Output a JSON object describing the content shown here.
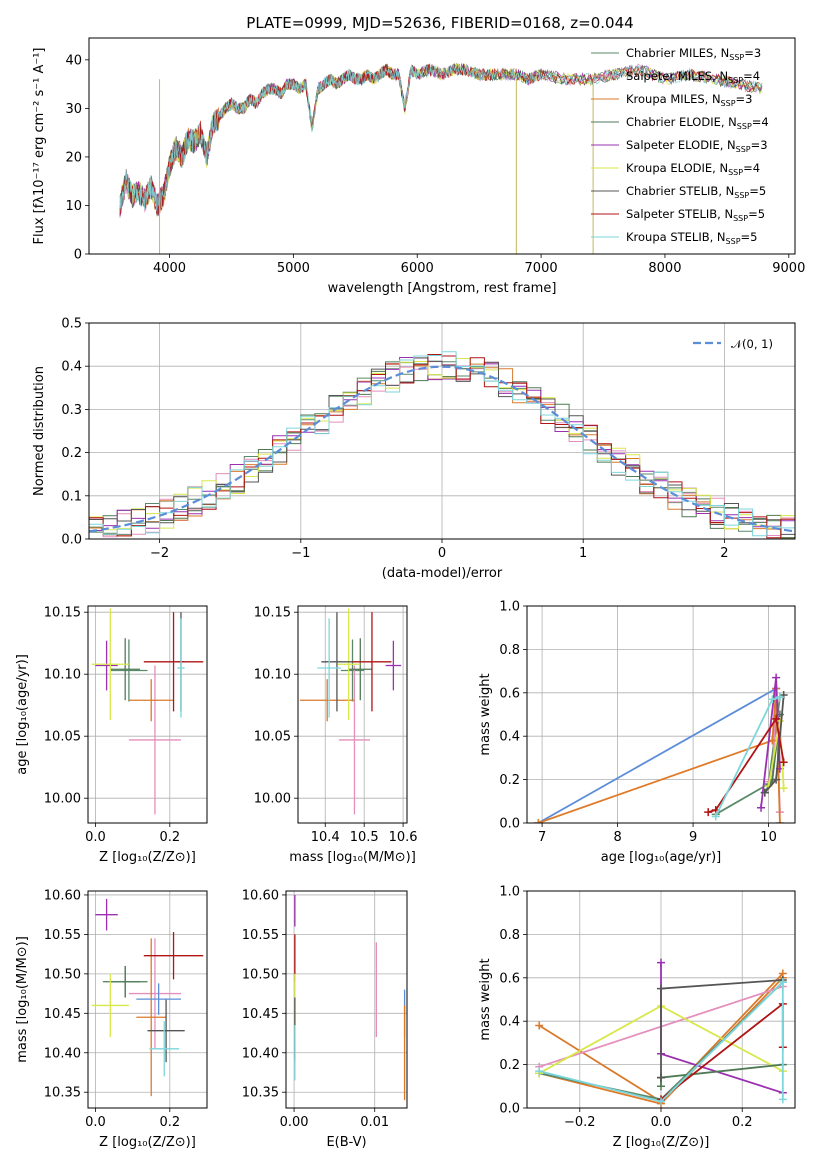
{
  "title": "PLATE=0999, MJD=52636, FIBERID=0168, z=0.044",
  "colors": {
    "Chabrier MILES": "#5a8a6a",
    "Salpeter MILES": "#e48fbc",
    "Kroupa MILES": "#d97a2b",
    "Chabrier ELODIE": "#4f7a54",
    "Salpeter ELODIE": "#9b30b0",
    "Kroupa ELODIE": "#d8e84a",
    "Chabrier STELIB": "#555555",
    "Salpeter STELIB": "#b01515",
    "Kroupa STELIB": "#7dd6dc",
    "gauss": "#5b8dd9",
    "extra_blue": "#5b8dd9",
    "extra_orange": "#e07b2a"
  },
  "legend": [
    {
      "key": "Chabrier MILES",
      "label": "Chabrier MILES, N",
      "sub": "SSP",
      "val": "=3"
    },
    {
      "key": "Salpeter MILES",
      "label": "Salpeter MILES, N",
      "sub": "SSP",
      "val": "=4"
    },
    {
      "key": "Kroupa MILES",
      "label": "Kroupa MILES, N",
      "sub": "SSP",
      "val": "=3"
    },
    {
      "key": "Chabrier ELODIE",
      "label": "Chabrier ELODIE, N",
      "sub": "SSP",
      "val": "=4"
    },
    {
      "key": "Salpeter ELODIE",
      "label": "Salpeter ELODIE, N",
      "sub": "SSP",
      "val": "=3"
    },
    {
      "key": "Kroupa ELODIE",
      "label": "Kroupa ELODIE, N",
      "sub": "SSP",
      "val": "=4"
    },
    {
      "key": "Chabrier STELIB",
      "label": "Chabrier STELIB, N",
      "sub": "SSP",
      "val": "=5"
    },
    {
      "key": "Salpeter STELIB",
      "label": "Salpeter STELIB, N",
      "sub": "SSP",
      "val": "=5"
    },
    {
      "key": "Kroupa STELIB",
      "label": "Kroupa STELIB, N",
      "sub": "SSP",
      "val": "=5"
    }
  ],
  "chart_data": [
    {
      "id": "spectrum",
      "type": "line",
      "xlabel": "wavelength [Angstrom, rest frame]",
      "ylabel": "Flux [fλ10⁻¹⁷ erg cm⁻² s⁻¹ A⁻¹]",
      "xlim": [
        3350,
        9050
      ],
      "ylim": [
        0,
        44.5
      ],
      "xticks": [
        4000,
        5000,
        6000,
        7000,
        8000,
        9000
      ],
      "yticks": [
        0,
        10,
        20,
        30,
        40
      ],
      "x": [
        3600,
        3650,
        3700,
        3750,
        3800,
        3850,
        3900,
        3950,
        4000,
        4050,
        4100,
        4150,
        4200,
        4250,
        4300,
        4350,
        4400,
        4450,
        4500,
        4550,
        4600,
        4650,
        4700,
        4750,
        4800,
        4850,
        4900,
        4950,
        5000,
        5050,
        5100,
        5150,
        5200,
        5250,
        5300,
        5350,
        5400,
        5450,
        5500,
        5550,
        5600,
        5650,
        5700,
        5750,
        5800,
        5850,
        5900,
        5950,
        6000,
        6100,
        6200,
        6300,
        6400,
        6500,
        6600,
        6700,
        6800,
        6900,
        7000,
        7200,
        7400,
        7600,
        7800,
        8000,
        8200,
        8400,
        8600,
        8800
      ],
      "y": [
        10,
        15,
        12,
        13,
        11,
        14,
        10,
        12,
        18,
        22,
        20,
        24,
        23,
        25,
        20,
        27,
        28,
        30,
        31,
        30,
        30,
        32,
        31,
        33,
        34,
        34,
        33,
        35,
        35,
        34,
        35,
        26,
        34,
        35,
        36,
        35,
        36,
        37,
        36,
        36,
        37,
        36,
        37,
        38,
        37,
        37,
        30,
        38,
        37,
        38,
        37,
        38,
        38,
        37,
        37,
        37,
        37,
        36,
        37,
        36,
        36,
        37,
        38,
        36,
        37,
        36,
        35,
        34
      ],
      "dips": [
        {
          "x": 3920,
          "y": 0
        },
        {
          "x": 6800,
          "y": 0
        },
        {
          "x": 7420,
          "y": 0
        }
      ]
    },
    {
      "id": "residual_hist",
      "type": "histogram",
      "xlabel": "(data-model)/error",
      "ylabel": "Normed distribution",
      "xlim": [
        -2.5,
        2.5
      ],
      "ylim": [
        0,
        0.5
      ],
      "xticks": [
        -2,
        -1,
        0,
        1,
        2
      ],
      "yticks": [
        0.0,
        0.1,
        0.2,
        0.3,
        0.4,
        0.5
      ],
      "legend_label": "𝒩(0, 1)",
      "legend_loc": "upper right",
      "bin_width": 0.1
    },
    {
      "id": "age_vs_Z",
      "type": "scatter",
      "xlabel": "Z [log₁₀(Z/Z⊙)]",
      "ylabel": "age  [log₁₀(age/yr)]",
      "xlim": [
        -0.02,
        0.3
      ],
      "ylim": [
        9.98,
        10.155
      ],
      "xticks": [
        0.0,
        0.2
      ],
      "yticks": [
        10.0,
        10.05,
        10.1,
        10.15
      ],
      "points": [
        {
          "s": "Chabrier MILES",
          "x": 0.09,
          "y": 10.103,
          "ex": 0.05,
          "ey": 0.025
        },
        {
          "s": "Salpeter MILES",
          "x": 0.16,
          "y": 10.047,
          "ex": 0.07,
          "ey": 0.06
        },
        {
          "s": "Kroupa MILES",
          "x": 0.15,
          "y": 10.079,
          "ex": 0.06,
          "ey": 0.017
        },
        {
          "s": "Chabrier ELODIE",
          "x": 0.08,
          "y": 10.104,
          "ex": 0.04,
          "ey": 0.025
        },
        {
          "s": "Salpeter ELODIE",
          "x": 0.03,
          "y": 10.107,
          "ex": 0.03,
          "ey": 0.02
        },
        {
          "s": "Kroupa ELODIE",
          "x": 0.04,
          "y": 10.108,
          "ex": 0.05,
          "ey": 0.045
        },
        {
          "s": "Chabrier STELIB",
          "x": 0.23,
          "y": 10.11,
          "ex": 0.01,
          "ey": 0.04
        },
        {
          "s": "Salpeter STELIB",
          "x": 0.21,
          "y": 10.11,
          "ex": 0.08,
          "ey": 0.04
        },
        {
          "s": "Kroupa STELIB",
          "x": 0.23,
          "y": 10.105,
          "ex": 0.01,
          "ey": 0.04
        }
      ]
    },
    {
      "id": "age_vs_mass",
      "type": "scatter",
      "xlabel": "mass [log₁₀(M/M⊙)]",
      "ylabel": "",
      "xlim": [
        10.33,
        10.61
      ],
      "ylim": [
        9.98,
        10.155
      ],
      "xticks": [
        10.4,
        10.5,
        10.6
      ],
      "yticks": [
        10.0,
        10.05,
        10.1,
        10.15
      ],
      "points": [
        {
          "s": "Chabrier MILES",
          "x": 10.47,
          "y": 10.103,
          "ex": 0.03,
          "ey": 0.025
        },
        {
          "s": "Salpeter MILES",
          "x": 10.475,
          "y": 10.047,
          "ex": 0.04,
          "ey": 0.06
        },
        {
          "s": "Kroupa MILES",
          "x": 10.405,
          "y": 10.079,
          "ex": 0.07,
          "ey": 0.017
        },
        {
          "s": "Chabrier ELODIE",
          "x": 10.49,
          "y": 10.104,
          "ex": 0.03,
          "ey": 0.025
        },
        {
          "s": "Salpeter ELODIE",
          "x": 10.575,
          "y": 10.107,
          "ex": 0.02,
          "ey": 0.02
        },
        {
          "s": "Kroupa ELODIE",
          "x": 10.46,
          "y": 10.108,
          "ex": 0.03,
          "ey": 0.045
        },
        {
          "s": "Chabrier STELIB",
          "x": 10.43,
          "y": 10.11,
          "ex": 0.04,
          "ey": 0.04
        },
        {
          "s": "Salpeter STELIB",
          "x": 10.52,
          "y": 10.11,
          "ex": 0.05,
          "ey": 0.04
        },
        {
          "s": "Kroupa STELIB",
          "x": 10.41,
          "y": 10.105,
          "ex": 0.03,
          "ey": 0.04
        }
      ]
    },
    {
      "id": "weight_vs_age",
      "type": "line",
      "xlabel": "age  [log₁₀(age/yr)]",
      "ylabel": "mass weight",
      "xlim": [
        6.8,
        10.35
      ],
      "ylim": [
        0,
        1.0
      ],
      "xticks": [
        7,
        8,
        9,
        10
      ],
      "yticks": [
        0.0,
        0.2,
        0.4,
        0.6,
        0.8,
        1.0
      ],
      "series": [
        {
          "s": "extra_blue",
          "x": [
            6.95,
            10.1
          ],
          "y": [
            0.0,
            0.62
          ]
        },
        {
          "s": "extra_orange",
          "x": [
            6.95,
            10.05
          ],
          "y": [
            0.0,
            0.38
          ]
        },
        {
          "s": "Chabrier MILES",
          "x": [
            9.3,
            10.0,
            10.15
          ],
          "y": [
            0.04,
            0.18,
            0.58
          ]
        },
        {
          "s": "Salpeter MILES",
          "x": [
            10.0,
            10.05,
            10.1,
            10.15
          ],
          "y": [
            0.19,
            0.2,
            0.56,
            0.05
          ]
        },
        {
          "s": "Kroupa MILES",
          "x": [
            10.05,
            10.1,
            10.15
          ],
          "y": [
            0.38,
            0.62,
            0.0
          ]
        },
        {
          "s": "Chabrier ELODIE",
          "x": [
            9.95,
            10.05,
            10.15
          ],
          "y": [
            0.14,
            0.2,
            0.5
          ]
        },
        {
          "s": "Salpeter ELODIE",
          "x": [
            9.9,
            10.1,
            10.15
          ],
          "y": [
            0.07,
            0.67,
            0.25
          ]
        },
        {
          "s": "Kroupa ELODIE",
          "x": [
            10.0,
            10.15,
            10.2
          ],
          "y": [
            0.17,
            0.47,
            0.16
          ]
        },
        {
          "s": "Chabrier STELIB",
          "x": [
            9.95,
            10.1,
            10.2
          ],
          "y": [
            0.14,
            0.2,
            0.59
          ]
        },
        {
          "s": "Salpeter STELIB",
          "x": [
            9.2,
            9.3,
            10.1,
            10.2
          ],
          "y": [
            0.05,
            0.06,
            0.48,
            0.28
          ]
        },
        {
          "s": "Kroupa STELIB",
          "x": [
            9.3,
            10.05,
            10.15
          ],
          "y": [
            0.03,
            0.57,
            0.58
          ]
        }
      ]
    },
    {
      "id": "mass_vs_Z",
      "type": "scatter",
      "xlabel": "Z [log₁₀(Z/Z⊙)]",
      "ylabel": "mass [log₁₀(M/M⊙)]",
      "xlim": [
        -0.02,
        0.3
      ],
      "ylim": [
        10.33,
        10.605
      ],
      "xticks": [
        0.0,
        0.2
      ],
      "yticks": [
        10.35,
        10.4,
        10.45,
        10.5,
        10.55,
        10.6
      ],
      "points": [
        {
          "s": "Chabrier MILES",
          "x": 0.08,
          "y": 10.49,
          "ex": 0.04,
          "ey": 0.02
        },
        {
          "s": "Salpeter MILES",
          "x": 0.16,
          "y": 10.475,
          "ex": 0.07,
          "ey": 0.07
        },
        {
          "s": "Kroupa MILES",
          "x": 0.15,
          "y": 10.445,
          "ex": 0.04,
          "ey": 0.1
        },
        {
          "s": "Chabrier ELODIE",
          "x": 0.08,
          "y": 10.49,
          "ex": 0.06,
          "ey": 0.02
        },
        {
          "s": "Salpeter ELODIE",
          "x": 0.03,
          "y": 10.575,
          "ex": 0.03,
          "ey": 0.02
        },
        {
          "s": "Kroupa ELODIE",
          "x": 0.04,
          "y": 10.46,
          "ex": 0.05,
          "ey": 0.04
        },
        {
          "s": "Chabrier STELIB",
          "x": 0.19,
          "y": 10.428,
          "ex": 0.05,
          "ey": 0.04
        },
        {
          "s": "Salpeter STELIB",
          "x": 0.21,
          "y": 10.523,
          "ex": 0.08,
          "ey": 0.03
        },
        {
          "s": "Kroupa STELIB",
          "x": 0.185,
          "y": 10.405,
          "ex": 0.04,
          "ey": 0.035
        },
        {
          "s": "gauss",
          "x": 0.17,
          "y": 10.468,
          "ex": 0.06,
          "ey": 0.02
        }
      ]
    },
    {
      "id": "mass_vs_EBV",
      "type": "scatter",
      "xlabel": "E(B-V)",
      "ylabel": "",
      "xlim": [
        -0.001,
        0.014
      ],
      "ylim": [
        10.33,
        10.605
      ],
      "xticks": [
        0.0,
        0.01
      ],
      "yticks": [
        10.35,
        10.4,
        10.45,
        10.5,
        10.55,
        10.6
      ],
      "points": [
        {
          "s": "Salpeter ELODIE",
          "x": 0.0001,
          "y": 10.58,
          "ex": 0,
          "ey": 0.02
        },
        {
          "s": "Salpeter STELIB",
          "x": 0.0001,
          "y": 10.52,
          "ex": 0,
          "ey": 0.03
        },
        {
          "s": "Kroupa ELODIE",
          "x": 0.0001,
          "y": 10.46,
          "ex": 0,
          "ey": 0.04
        },
        {
          "s": "Chabrier STELIB",
          "x": 0.0001,
          "y": 10.43,
          "ex": 0,
          "ey": 0.04
        },
        {
          "s": "Kroupa STELIB",
          "x": 0.0001,
          "y": 10.4,
          "ex": 0,
          "ey": 0.035
        },
        {
          "s": "Salpeter MILES",
          "x": 0.0102,
          "y": 10.48,
          "ex": 0,
          "ey": 0.06
        },
        {
          "s": "gauss",
          "x": 0.0137,
          "y": 10.45,
          "ex": 0,
          "ey": 0.03
        },
        {
          "s": "Kroupa MILES",
          "x": 0.0137,
          "y": 10.4,
          "ex": 0,
          "ey": 0.06
        }
      ]
    },
    {
      "id": "weight_vs_Z",
      "type": "line",
      "xlabel": "Z [log₁₀(Z/Z⊙)]",
      "ylabel": "mass weight",
      "xlim": [
        -0.33,
        0.33
      ],
      "ylim": [
        0,
        1.0
      ],
      "xticks": [
        -0.2,
        0.0,
        0.2
      ],
      "yticks": [
        0.0,
        0.2,
        0.4,
        0.6,
        0.8,
        1.0
      ],
      "series": [
        {
          "s": "Kroupa MILES",
          "x": [
            -0.3,
            0.0,
            0.3
          ],
          "y": [
            0.38,
            0.03,
            0.62
          ]
        },
        {
          "s": "extra_orange",
          "x": [
            -0.3,
            0.0,
            0.3
          ],
          "y": [
            0.16,
            0.02,
            0.6
          ]
        },
        {
          "s": "Salpeter MILES",
          "x": [
            -0.3,
            0.3
          ],
          "y": [
            0.19,
            0.56
          ]
        },
        {
          "s": "Chabrier MILES",
          "x": [
            -0.3,
            0.0,
            0.3
          ],
          "y": [
            0.16,
            0.04,
            0.58
          ]
        },
        {
          "s": "Kroupa ELODIE",
          "x": [
            -0.3,
            0.0,
            0.3
          ],
          "y": [
            0.16,
            0.47,
            0.17
          ]
        },
        {
          "s": "Salpeter ELODIE",
          "x": [
            0.0,
            0.0,
            0.3
          ],
          "y": [
            0.67,
            0.25,
            0.07
          ]
        },
        {
          "s": "Chabrier ELODIE",
          "x": [
            0.0,
            0.0,
            0.3
          ],
          "y": [
            0.1,
            0.14,
            0.2
          ]
        },
        {
          "s": "Chabrier STELIB",
          "x": [
            0.0,
            0.0,
            0.3
          ],
          "y": [
            0.14,
            0.55,
            0.59
          ]
        },
        {
          "s": "Salpeter STELIB",
          "x": [
            0.0,
            0.3,
            0.3
          ],
          "y": [
            0.04,
            0.48,
            0.28
          ]
        },
        {
          "s": "Kroupa STELIB",
          "x": [
            -0.3,
            0.0,
            0.3,
            0.3
          ],
          "y": [
            0.17,
            0.03,
            0.58,
            0.04
          ]
        }
      ]
    }
  ]
}
